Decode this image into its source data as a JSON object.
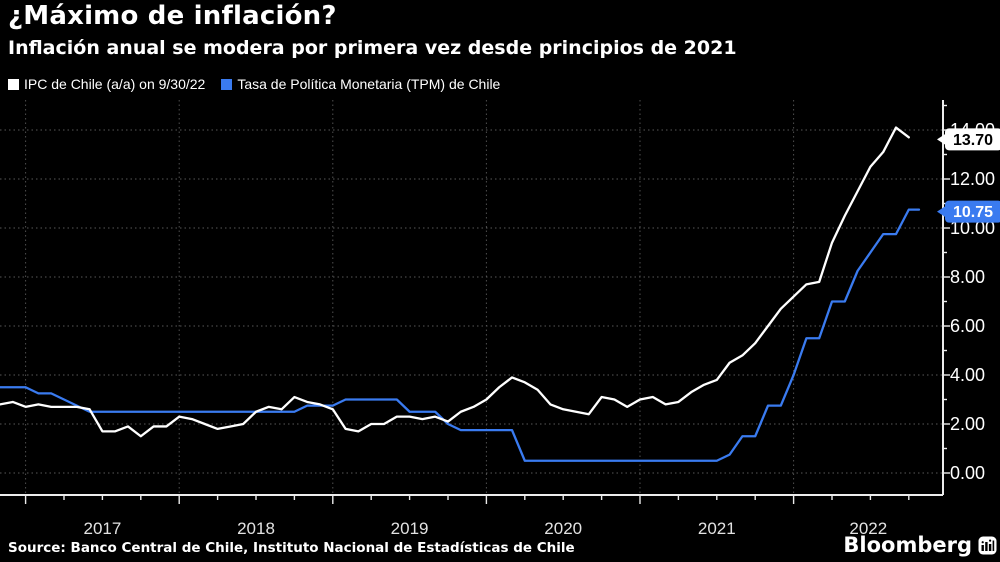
{
  "header": {
    "title": "¿Máximo de inflación?",
    "subtitle": "Inflación anual se modera por primera vez desde principios de 2021"
  },
  "legend": [
    {
      "label": "IPC de Chile (a/a) on 9/30/22",
      "color": "#ffffff"
    },
    {
      "label": "Tasa de Política Monetaria (TPM) de Chile",
      "color": "#3a7bf0"
    }
  ],
  "footer": {
    "source": "Source: Banco Central de Chile, Instituto Nacional de Estadísticas de Chile",
    "brand": "Bloomberg"
  },
  "chart_data": {
    "type": "line",
    "title": "¿Máximo de inflación?",
    "subtitle": "Inflación anual se modera por primera vez desde principios de 2021",
    "xlabel": "",
    "ylabel": "",
    "frequency": "monthly",
    "x_start": "2016-10",
    "x_end": "2022-09",
    "x_tick_years": [
      "2017",
      "2018",
      "2019",
      "2020",
      "2021",
      "2022"
    ],
    "y_ticks": [
      "0.00",
      "2.00",
      "4.00",
      "6.00",
      "8.00",
      "10.00",
      "12.00",
      "14.00"
    ],
    "ylim": [
      0,
      14
    ],
    "grid": "dotted",
    "background": "#000000",
    "legend_position": "top-left",
    "series": [
      {
        "name": "IPC de Chile (a/a) on 9/30/22",
        "color": "#ffffff",
        "last_label": "13.70",
        "extend": false,
        "values": [
          2.8,
          2.9,
          2.7,
          2.8,
          2.7,
          2.7,
          2.7,
          2.6,
          1.7,
          1.7,
          1.9,
          1.5,
          1.9,
          1.9,
          2.3,
          2.2,
          2.0,
          1.8,
          1.9,
          2.0,
          2.5,
          2.7,
          2.6,
          3.1,
          2.9,
          2.8,
          2.6,
          1.8,
          1.7,
          2.0,
          2.0,
          2.3,
          2.3,
          2.2,
          2.3,
          2.1,
          2.5,
          2.7,
          3.0,
          3.5,
          3.9,
          3.7,
          3.4,
          2.8,
          2.6,
          2.5,
          2.4,
          3.1,
          3.0,
          2.7,
          3.0,
          3.1,
          2.8,
          2.9,
          3.3,
          3.6,
          3.8,
          4.5,
          4.8,
          5.3,
          6.0,
          6.7,
          7.2,
          7.7,
          7.8,
          9.4,
          10.5,
          11.5,
          12.5,
          13.1,
          14.1,
          13.7
        ]
      },
      {
        "name": "Tasa de Política Monetaria (TPM) de Chile",
        "color": "#3a7bf0",
        "last_label": "10.75",
        "extend": true,
        "values": [
          3.5,
          3.5,
          3.5,
          3.25,
          3.25,
          3.0,
          2.75,
          2.5,
          2.5,
          2.5,
          2.5,
          2.5,
          2.5,
          2.5,
          2.5,
          2.5,
          2.5,
          2.5,
          2.5,
          2.5,
          2.5,
          2.5,
          2.5,
          2.5,
          2.75,
          2.75,
          2.75,
          3.0,
          3.0,
          3.0,
          3.0,
          3.0,
          2.5,
          2.5,
          2.5,
          2.0,
          1.75,
          1.75,
          1.75,
          1.75,
          1.75,
          0.5,
          0.5,
          0.5,
          0.5,
          0.5,
          0.5,
          0.5,
          0.5,
          0.5,
          0.5,
          0.5,
          0.5,
          0.5,
          0.5,
          0.5,
          0.5,
          0.75,
          1.5,
          1.5,
          2.75,
          2.75,
          4.0,
          5.5,
          5.5,
          7.0,
          7.0,
          8.25,
          9.0,
          9.75,
          9.75,
          10.75
        ]
      }
    ]
  }
}
